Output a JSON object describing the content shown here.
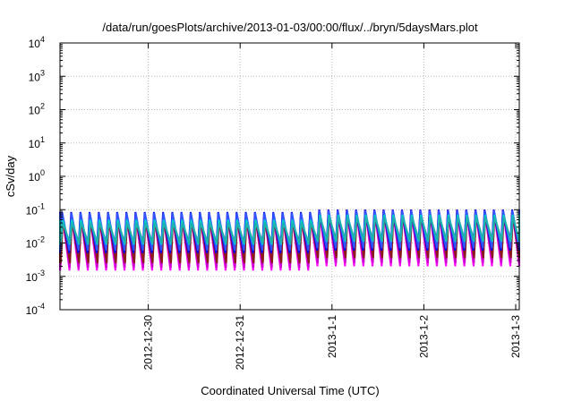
{
  "chart_data": {
    "type": "line",
    "title": "/data/run/goesPlots/archive/2013-01-03/00:00/flux/../bryn/5daysMars.plot",
    "xlabel": "Coordinated Universal Time (UTC)",
    "ylabel": "cSv/day",
    "y_scale": "log",
    "ylim": [
      0.0001,
      10000
    ],
    "xlim": [
      "2012-12-29 00:56",
      "2013-01-03 00:56"
    ],
    "x_ticks": [
      {
        "value": "2012-12-30 00:00",
        "label": "2012-12-30"
      },
      {
        "value": "2012-12-31 00:00",
        "label": "2012-12-31"
      },
      {
        "value": "2013-01-01 00:00",
        "label": "2013-1-1"
      },
      {
        "value": "2013-01-02 00:00",
        "label": "2013-1-2"
      },
      {
        "value": "2013-01-03 00:00",
        "label": "2013-1-3"
      }
    ],
    "y_ticks": [
      {
        "value": 0.0001,
        "base": "10",
        "exp": "-4"
      },
      {
        "value": 0.001,
        "base": "10",
        "exp": "-3"
      },
      {
        "value": 0.01,
        "base": "10",
        "exp": "-2"
      },
      {
        "value": 0.1,
        "base": "10",
        "exp": "-1"
      },
      {
        "value": 1,
        "base": "10",
        "exp": "0"
      },
      {
        "value": 10,
        "base": "10",
        "exp": "1"
      },
      {
        "value": 100,
        "base": "10",
        "exp": "2"
      },
      {
        "value": 1000,
        "base": "10",
        "exp": "3"
      },
      {
        "value": 10000,
        "base": "10",
        "exp": "4"
      }
    ],
    "grid": true,
    "cycle_hours": 2.4,
    "series": [
      {
        "color": "#ff0000",
        "peak_before": 0.075,
        "trough_before": 0.0035,
        "peak_after": 0.1,
        "trough_after": 0.004
      },
      {
        "color": "#ff00ff",
        "peak_before": 0.07,
        "trough_before": 0.0015,
        "peak_after": 0.09,
        "trough_after": 0.002
      },
      {
        "color": "#cc00cc",
        "peak_before": 0.06,
        "trough_before": 0.0018,
        "peak_after": 0.08,
        "trough_after": 0.0025
      },
      {
        "color": "#8b1a1a",
        "peak_before": 0.05,
        "trough_before": 0.0025,
        "peak_after": 0.07,
        "trough_after": 0.0035
      },
      {
        "color": "#0000ff",
        "peak_before": 0.085,
        "trough_before": 0.005,
        "peak_after": 0.1,
        "trough_after": 0.006
      },
      {
        "color": "#3355ff",
        "peak_before": 0.08,
        "trough_before": 0.006,
        "peak_after": 0.095,
        "trough_after": 0.007
      },
      {
        "color": "#00cccc",
        "peak_before": 0.05,
        "trough_before": 0.009,
        "peak_after": 0.07,
        "trough_after": 0.011
      },
      {
        "color": "#20b2aa",
        "peak_before": 0.04,
        "trough_before": 0.01,
        "peak_after": 0.06,
        "trough_after": 0.012
      }
    ]
  }
}
